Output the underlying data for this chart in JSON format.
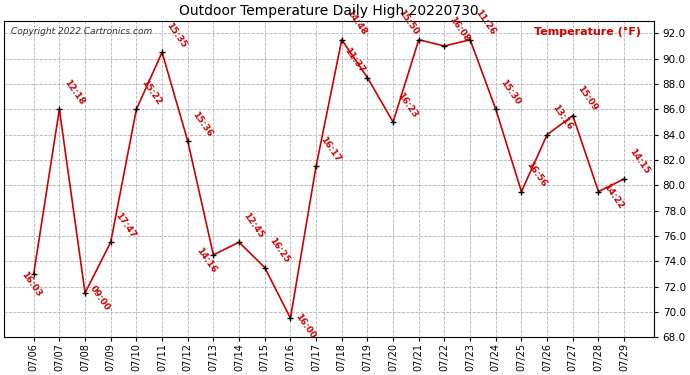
{
  "title": "Outdoor Temperature Daily High 20220730",
  "copyright": "Copyright 2022 Cartronics.com",
  "ylabel": "Temperature (°F)",
  "background_color": "#ffffff",
  "line_color": "#cc0000",
  "point_color": "#000000",
  "dates": [
    "07/06",
    "07/07",
    "07/08",
    "07/09",
    "07/10",
    "07/11",
    "07/12",
    "07/13",
    "07/14",
    "07/15",
    "07/16",
    "07/17",
    "07/18",
    "07/19",
    "07/20",
    "07/21",
    "07/22",
    "07/23",
    "07/24",
    "07/25",
    "07/26",
    "07/27",
    "07/28",
    "07/29"
  ],
  "temperatures": [
    73.0,
    86.0,
    71.5,
    75.5,
    86.0,
    90.5,
    83.5,
    74.5,
    75.5,
    73.5,
    69.5,
    81.5,
    91.5,
    88.5,
    85.0,
    91.5,
    91.0,
    91.5,
    86.0,
    79.5,
    84.0,
    85.5,
    79.5,
    80.5
  ],
  "labels": [
    "16:03",
    "12:18",
    "09:00",
    "17:47",
    "15:22",
    "15:35",
    "15:36",
    "14:16",
    "12:45",
    "16:25",
    "16:00",
    "16:17",
    "14:48",
    "11:37",
    "16:23",
    "15:50",
    "16:08",
    "11:26",
    "15:30",
    "16:56",
    "13:16",
    "15:09",
    "14:22",
    "14:15"
  ],
  "ylim": [
    68.0,
    93.0
  ],
  "yticks": [
    68.0,
    70.0,
    72.0,
    74.0,
    76.0,
    78.0,
    80.0,
    82.0,
    84.0,
    86.0,
    88.0,
    90.0,
    92.0
  ]
}
